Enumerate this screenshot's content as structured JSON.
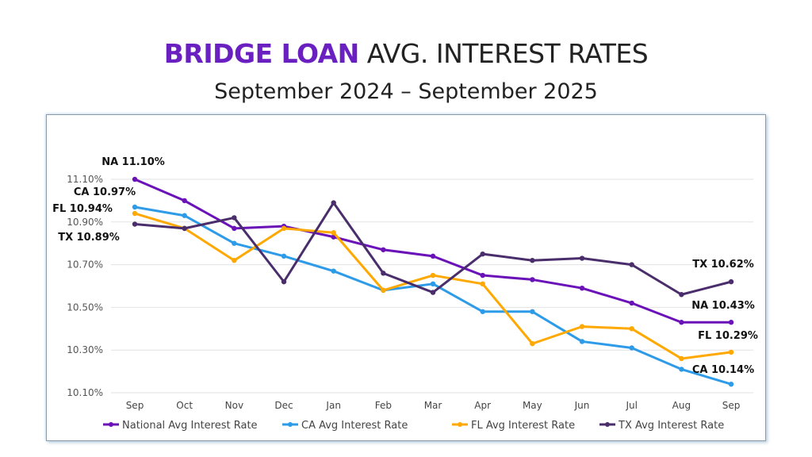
{
  "title": {
    "highlight": "BRIDGE LOAN",
    "rest": " AVG. INTEREST RATES"
  },
  "subtitle": "September 2024 – September 2025",
  "chart_data": {
    "type": "line",
    "categories": [
      "Sep",
      "Oct",
      "Nov",
      "Dec",
      "Jan",
      "Feb",
      "Mar",
      "Apr",
      "May",
      "Jun",
      "Jul",
      "Aug",
      "Sep"
    ],
    "ylim": [
      10.1,
      11.1
    ],
    "yticks": [
      "10.10%",
      "10.30%",
      "10.50%",
      "10.70%",
      "10.90%",
      "11.10%"
    ],
    "ytick_values": [
      10.1,
      10.3,
      10.5,
      10.7,
      10.9,
      11.1
    ],
    "grid": true,
    "legend": "bottom",
    "series": [
      {
        "name": "National Avg Interest Rate",
        "color": "#6a12b8",
        "values": [
          11.1,
          11.0,
          10.87,
          10.88,
          10.83,
          10.77,
          10.74,
          10.65,
          10.63,
          10.59,
          10.52,
          10.43,
          10.43
        ],
        "labels": {
          "first": "NA 11.10%",
          "last": "NA 10.43%"
        }
      },
      {
        "name": "CA Avg Interest Rate",
        "color": "#2e9be8",
        "values": [
          10.97,
          10.93,
          10.8,
          10.74,
          10.67,
          10.58,
          10.61,
          10.48,
          10.48,
          10.34,
          10.31,
          10.21,
          10.14
        ],
        "labels": {
          "first": "CA 10.97%",
          "last": "CA 10.14%"
        }
      },
      {
        "name": "FL Avg Interest Rate",
        "color": "#ffa800",
        "values": [
          10.94,
          10.87,
          10.72,
          10.87,
          10.85,
          10.58,
          10.65,
          10.61,
          10.33,
          10.41,
          10.4,
          10.26,
          10.29
        ],
        "labels": {
          "first": "FL 10.94%",
          "last": "FL 10.29%"
        }
      },
      {
        "name": "TX Avg Interest Rate",
        "color": "#4a2d6b",
        "values": [
          10.89,
          10.87,
          10.92,
          10.62,
          10.99,
          10.66,
          10.57,
          10.75,
          10.72,
          10.73,
          10.7,
          10.56,
          10.62
        ],
        "labels": {
          "first": "TX 10.89%",
          "last": "TX 10.62%"
        }
      }
    ]
  }
}
